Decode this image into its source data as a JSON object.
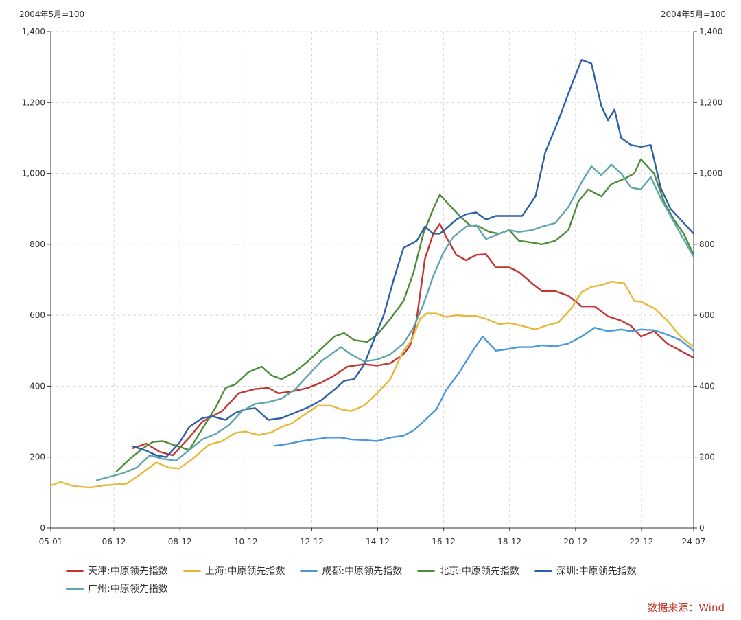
{
  "chart_data": {
    "type": "line",
    "unit_label_left": "2004年5月=100",
    "unit_label_right": "2004年5月=100",
    "ylim": [
      0,
      1400
    ],
    "y_ticks": [
      0,
      200,
      400,
      600,
      800,
      1000,
      1200,
      1400
    ],
    "y_tick_labels": [
      "0",
      "200",
      "400",
      "600",
      "800",
      "1,000",
      "1,200",
      "1,400"
    ],
    "x_range": [
      2005.0,
      2024.5
    ],
    "x_ticks": [
      2005.0,
      2006.917,
      2008.917,
      2010.917,
      2012.917,
      2014.917,
      2016.917,
      2018.917,
      2020.917,
      2022.917,
      2024.5
    ],
    "x_tick_labels": [
      "05-01",
      "06-12",
      "08-12",
      "10-12",
      "12-12",
      "14-12",
      "16-12",
      "18-12",
      "20-12",
      "22-12",
      "24-07"
    ],
    "grid": true,
    "legend_position": "bottom",
    "series": [
      {
        "name": "天津:中原领先指数",
        "color": "#c23531",
        "x": [
          2007.5,
          2007.9,
          2008.3,
          2008.7,
          2009.2,
          2009.6,
          2010.2,
          2010.7,
          2011.2,
          2011.6,
          2011.9,
          2012.3,
          2012.8,
          2013.2,
          2013.6,
          2014.0,
          2014.5,
          2014.9,
          2015.3,
          2015.7,
          2015.9,
          2016.1,
          2016.35,
          2016.6,
          2016.8,
          2017.0,
          2017.3,
          2017.6,
          2017.9,
          2018.2,
          2018.5,
          2018.9,
          2019.2,
          2019.6,
          2019.9,
          2020.3,
          2020.7,
          2021.1,
          2021.5,
          2021.9,
          2022.3,
          2022.6,
          2022.9,
          2023.3,
          2023.7,
          2024.1,
          2024.5
        ],
        "y": [
          225,
          238,
          215,
          205,
          255,
          300,
          330,
          380,
          392,
          395,
          380,
          385,
          395,
          410,
          430,
          455,
          462,
          458,
          465,
          490,
          515,
          590,
          760,
          830,
          858,
          820,
          770,
          755,
          770,
          772,
          735,
          735,
          722,
          690,
          668,
          668,
          655,
          625,
          625,
          597,
          585,
          570,
          540,
          555,
          520,
          500,
          480
        ]
      },
      {
        "name": "上海:中原领先指数",
        "color": "#e6b83a",
        "x": [
          2005.0,
          2005.3,
          2005.7,
          2006.2,
          2006.6,
          2007.0,
          2007.3,
          2007.7,
          2008.2,
          2008.6,
          2008.9,
          2009.3,
          2009.8,
          2010.2,
          2010.6,
          2010.9,
          2011.3,
          2011.7,
          2012.0,
          2012.3,
          2012.7,
          2013.1,
          2013.5,
          2013.8,
          2014.1,
          2014.5,
          2014.9,
          2015.3,
          2015.7,
          2015.95,
          2016.2,
          2016.4,
          2016.7,
          2017.0,
          2017.3,
          2017.6,
          2017.9,
          2018.2,
          2018.6,
          2018.9,
          2019.3,
          2019.7,
          2020.0,
          2020.4,
          2020.8,
          2021.1,
          2021.4,
          2021.7,
          2022.0,
          2022.4,
          2022.7,
          2022.9,
          2023.3,
          2023.7,
          2024.1,
          2024.5
        ],
        "y": [
          120,
          130,
          118,
          114,
          120,
          123,
          125,
          150,
          185,
          170,
          168,
          195,
          235,
          245,
          268,
          272,
          262,
          270,
          285,
          295,
          320,
          345,
          345,
          335,
          330,
          345,
          380,
          420,
          500,
          530,
          590,
          605,
          605,
          595,
          600,
          598,
          598,
          590,
          575,
          578,
          570,
          560,
          570,
          580,
          620,
          665,
          680,
          685,
          695,
          690,
          640,
          638,
          620,
          585,
          540,
          510
        ]
      },
      {
        "name": "成都:中原领先指数",
        "color": "#4a98d9",
        "x": [
          2011.8,
          2012.2,
          2012.6,
          2013.0,
          2013.4,
          2013.8,
          2014.1,
          2014.5,
          2014.9,
          2015.3,
          2015.7,
          2016.0,
          2016.3,
          2016.7,
          2017.0,
          2017.4,
          2017.8,
          2018.1,
          2018.5,
          2018.9,
          2019.2,
          2019.6,
          2019.9,
          2020.3,
          2020.7,
          2021.1,
          2021.5,
          2021.9,
          2022.3,
          2022.6,
          2022.9,
          2023.3,
          2023.7,
          2024.1,
          2024.5
        ],
        "y": [
          232,
          237,
          245,
          250,
          255,
          255,
          250,
          248,
          245,
          255,
          260,
          275,
          300,
          335,
          390,
          440,
          500,
          540,
          500,
          505,
          510,
          510,
          515,
          512,
          520,
          540,
          565,
          555,
          560,
          555,
          560,
          558,
          545,
          530,
          500
        ]
      },
      {
        "name": "北京:中原领先指数",
        "color": "#4e8c38",
        "x": [
          2007.0,
          2007.4,
          2007.8,
          2008.1,
          2008.4,
          2008.8,
          2009.2,
          2009.6,
          2010.0,
          2010.3,
          2010.6,
          2011.0,
          2011.4,
          2011.7,
          2012.0,
          2012.4,
          2012.8,
          2013.2,
          2013.6,
          2013.9,
          2014.2,
          2014.6,
          2014.9,
          2015.3,
          2015.7,
          2016.0,
          2016.3,
          2016.6,
          2016.8,
          2017.1,
          2017.4,
          2017.7,
          2018.0,
          2018.3,
          2018.6,
          2018.9,
          2019.2,
          2019.6,
          2019.9,
          2020.3,
          2020.7,
          2021.0,
          2021.3,
          2021.7,
          2022.0,
          2022.4,
          2022.7,
          2022.9,
          2023.3,
          2023.6,
          2023.9,
          2024.2,
          2024.5
        ],
        "y": [
          160,
          195,
          225,
          243,
          245,
          232,
          220,
          280,
          340,
          395,
          405,
          440,
          455,
          430,
          420,
          440,
          470,
          505,
          540,
          550,
          530,
          525,
          545,
          590,
          640,
          720,
          830,
          900,
          940,
          910,
          880,
          855,
          850,
          835,
          830,
          840,
          810,
          805,
          800,
          810,
          840,
          920,
          955,
          935,
          970,
          985,
          1000,
          1040,
          1000,
          920,
          870,
          830,
          770
        ]
      },
      {
        "name": "深圳:中原领先指数",
        "color": "#2b5fa6",
        "x": [
          2007.5,
          2007.9,
          2008.2,
          2008.5,
          2008.9,
          2009.2,
          2009.6,
          2009.9,
          2010.3,
          2010.6,
          2010.9,
          2011.2,
          2011.6,
          2012.0,
          2012.4,
          2012.8,
          2013.2,
          2013.6,
          2013.9,
          2014.2,
          2014.5,
          2014.8,
          2015.1,
          2015.4,
          2015.7,
          2015.9,
          2016.1,
          2016.35,
          2016.6,
          2016.8,
          2017.0,
          2017.3,
          2017.6,
          2017.9,
          2018.2,
          2018.5,
          2018.9,
          2019.3,
          2019.7,
          2020.0,
          2020.4,
          2020.8,
          2021.1,
          2021.4,
          2021.7,
          2021.9,
          2022.1,
          2022.3,
          2022.6,
          2022.9,
          2023.2,
          2023.5,
          2023.8,
          2024.1,
          2024.4,
          2024.5
        ],
        "y": [
          230,
          218,
          205,
          200,
          240,
          285,
          310,
          315,
          305,
          325,
          335,
          338,
          305,
          310,
          325,
          340,
          360,
          390,
          415,
          420,
          460,
          530,
          600,
          700,
          790,
          800,
          810,
          850,
          830,
          830,
          845,
          870,
          885,
          890,
          870,
          880,
          880,
          880,
          935,
          1060,
          1150,
          1250,
          1320,
          1310,
          1190,
          1150,
          1180,
          1100,
          1080,
          1075,
          1080,
          960,
          900,
          870,
          840,
          830
        ]
      },
      {
        "name": "广州:中原领先指数",
        "color": "#5ea5b0",
        "x": [
          2006.4,
          2006.8,
          2007.2,
          2007.6,
          2008.0,
          2008.4,
          2008.8,
          2009.2,
          2009.6,
          2010.0,
          2010.4,
          2010.8,
          2011.2,
          2011.6,
          2012.0,
          2012.4,
          2012.8,
          2013.2,
          2013.5,
          2013.8,
          2014.1,
          2014.5,
          2014.9,
          2015.3,
          2015.7,
          2016.0,
          2016.3,
          2016.6,
          2016.9,
          2017.2,
          2017.6,
          2017.9,
          2018.2,
          2018.6,
          2018.9,
          2019.2,
          2019.6,
          2019.9,
          2020.3,
          2020.7,
          2021.1,
          2021.4,
          2021.7,
          2022.0,
          2022.3,
          2022.6,
          2022.9,
          2023.2,
          2023.5,
          2023.8,
          2024.1,
          2024.5
        ],
        "y": [
          135,
          145,
          155,
          170,
          205,
          195,
          190,
          220,
          250,
          265,
          290,
          330,
          350,
          355,
          365,
          390,
          430,
          470,
          490,
          510,
          490,
          470,
          475,
          490,
          520,
          565,
          630,
          710,
          775,
          820,
          850,
          855,
          815,
          830,
          840,
          835,
          840,
          850,
          860,
          905,
          975,
          1020,
          995,
          1025,
          1000,
          960,
          955,
          990,
          930,
          880,
          830,
          765
        ]
      }
    ]
  },
  "source": "数据来源：Wind"
}
